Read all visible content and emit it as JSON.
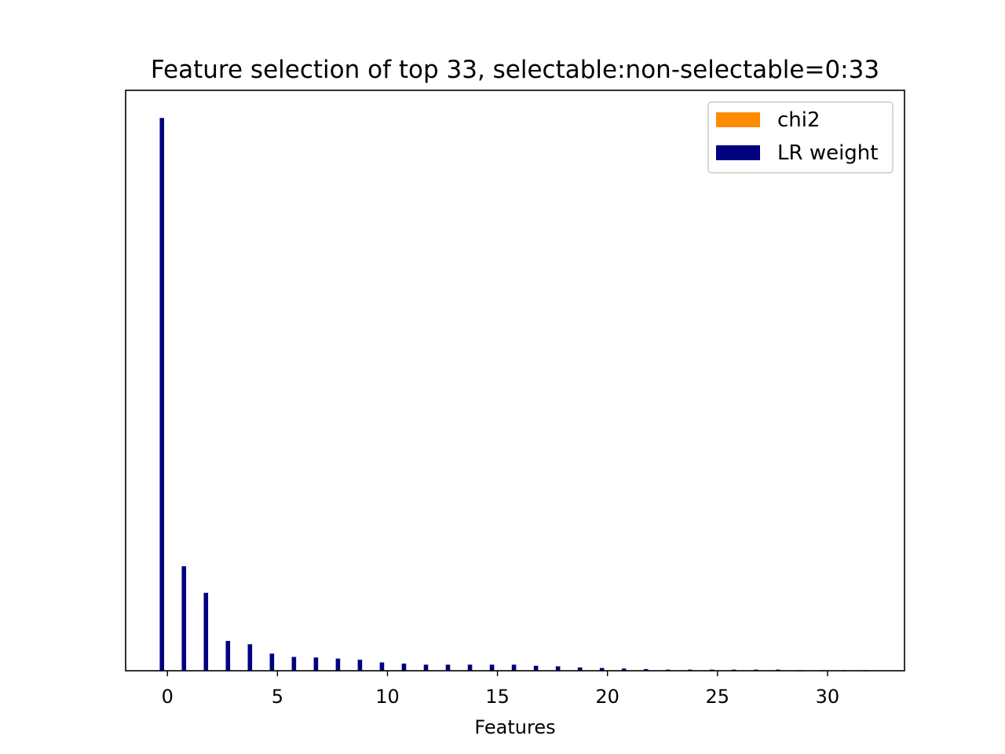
{
  "chart_data": {
    "type": "bar",
    "title": "Feature selection of top 33, selectable:non-selectable=0:33",
    "xlabel": "Features",
    "ylabel": "",
    "xlim": [
      -1.9,
      33.5
    ],
    "ylim": [
      0,
      1.05
    ],
    "x_ticks": [
      0,
      5,
      10,
      15,
      20,
      25,
      30
    ],
    "y_ticks": [],
    "grid": false,
    "legend_position": "top-right",
    "x": [
      0,
      1,
      2,
      3,
      4,
      5,
      6,
      7,
      8,
      9,
      10,
      11,
      12,
      13,
      14,
      15,
      16,
      17,
      18,
      19,
      20,
      21,
      22,
      23,
      24,
      25,
      26,
      27,
      28,
      29,
      30,
      31,
      32
    ],
    "series": [
      {
        "name": "chi2",
        "color": "#ff8c00",
        "offset": 0.1,
        "values": [
          0,
          0,
          0,
          0,
          0,
          0,
          0,
          0,
          0,
          0,
          0,
          0,
          0,
          0,
          0,
          0,
          0,
          0,
          0,
          0,
          0,
          0,
          0,
          0,
          0,
          0,
          0,
          0,
          0,
          0,
          0,
          0,
          0
        ]
      },
      {
        "name": "LR weight",
        "color": "#000080",
        "offset": -0.25,
        "values": [
          1.0,
          0.189,
          0.141,
          0.054,
          0.048,
          0.031,
          0.025,
          0.024,
          0.022,
          0.02,
          0.015,
          0.013,
          0.011,
          0.011,
          0.011,
          0.011,
          0.011,
          0.009,
          0.008,
          0.006,
          0.005,
          0.004,
          0.003,
          0.002,
          0.002,
          0.002,
          0.002,
          0.002,
          0.002,
          0.001,
          0.001,
          0.001,
          0.001
        ]
      }
    ]
  }
}
